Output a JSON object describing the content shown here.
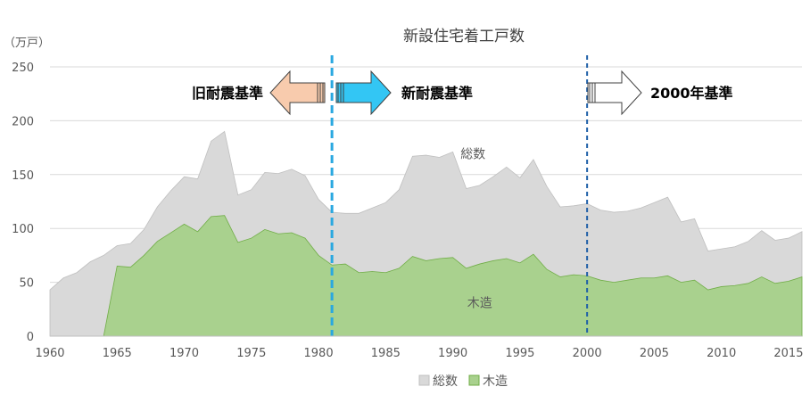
{
  "chart_data": {
    "type": "area",
    "title": "新設住宅着工戸数",
    "ylabel": "（万戸）",
    "xlabel": "",
    "xlim": [
      1960,
      2016
    ],
    "ylim": [
      0,
      250
    ],
    "yticks": [
      0,
      50,
      100,
      150,
      200,
      250
    ],
    "xticks": [
      1960,
      1965,
      1970,
      1975,
      1980,
      1985,
      1990,
      1995,
      2000,
      2005,
      2010,
      2015
    ],
    "x": [
      1960,
      1961,
      1962,
      1963,
      1964,
      1965,
      1966,
      1967,
      1968,
      1969,
      1970,
      1971,
      1972,
      1973,
      1974,
      1975,
      1976,
      1977,
      1978,
      1979,
      1980,
      1981,
      1982,
      1983,
      1984,
      1985,
      1986,
      1987,
      1988,
      1989,
      1990,
      1991,
      1992,
      1993,
      1994,
      1995,
      1996,
      1997,
      1998,
      1999,
      2000,
      2001,
      2002,
      2003,
      2004,
      2005,
      2006,
      2007,
      2008,
      2009,
      2010,
      2011,
      2012,
      2013,
      2014,
      2015,
      2016
    ],
    "series": [
      {
        "name": "総数",
        "color": "#d9d9d9",
        "values": [
          43,
          54,
          59,
          69,
          75,
          84,
          86,
          99,
          120,
          135,
          148,
          146,
          181,
          190,
          131,
          136,
          152,
          151,
          155,
          149,
          127,
          115,
          114,
          114,
          119,
          124,
          136,
          167,
          168,
          166,
          171,
          137,
          140,
          148,
          157,
          147,
          164,
          139,
          120,
          121,
          123,
          117,
          115,
          116,
          119,
          124,
          129,
          106,
          109,
          79,
          81,
          83,
          88,
          98,
          89,
          91,
          97
        ]
      },
      {
        "name": "木造",
        "color": "#a9d18e",
        "values": [
          null,
          null,
          null,
          null,
          0,
          65,
          64,
          75,
          88,
          96,
          104,
          97,
          111,
          112,
          87,
          91,
          99,
          95,
          96,
          91,
          75,
          66,
          67,
          59,
          60,
          59,
          63,
          74,
          70,
          72,
          73,
          63,
          67,
          70,
          72,
          68,
          76,
          62,
          55,
          57,
          56,
          52,
          50,
          52,
          54,
          54,
          56,
          50,
          52,
          43,
          46,
          47,
          49,
          55,
          49,
          51,
          55
        ]
      }
    ],
    "series_labels": [
      {
        "text": "総数",
        "x": 1991.5,
        "y": 165
      },
      {
        "text": "木造",
        "x": 1992,
        "y": 27
      }
    ],
    "vlines": [
      {
        "x": 1981,
        "color": "#29a8e0",
        "style": "dashed"
      },
      {
        "x": 2000,
        "color": "#1f5fa8",
        "style": "dashed"
      }
    ],
    "eras": [
      {
        "label": "旧耐震基準",
        "direction": "left",
        "fill": "#f8cbad"
      },
      {
        "label": "新耐震基準",
        "direction": "right",
        "fill": "#33c6f4"
      },
      {
        "label": "2000年基準",
        "direction": "right",
        "fill": "#ffffff"
      }
    ],
    "legend": {
      "position": "bottom",
      "entries": [
        {
          "name": "総数",
          "color": "#d9d9d9"
        },
        {
          "name": "木造",
          "color": "#a9d18e"
        }
      ]
    },
    "grid": "horizontal"
  }
}
